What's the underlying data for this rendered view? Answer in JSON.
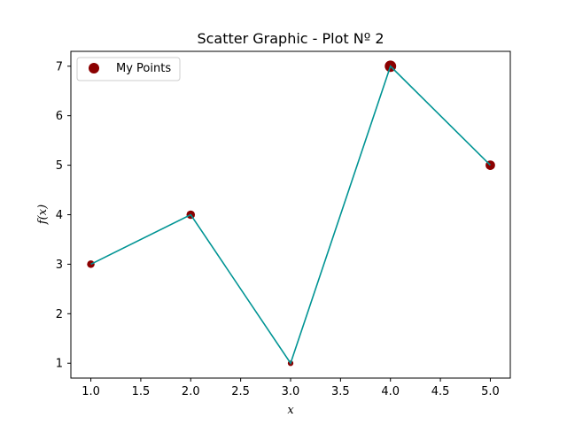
{
  "chart_data": {
    "type": "scatter",
    "title": "Scatter Graphic - Plot Nº 2",
    "xlabel": "x",
    "ylabel": "f(x)",
    "xlim": [
      0.8,
      5.2
    ],
    "ylim": [
      0.7,
      7.3
    ],
    "xticks": [
      1.0,
      1.5,
      2.0,
      2.5,
      3.0,
      3.5,
      4.0,
      4.5,
      5.0
    ],
    "xtick_labels": [
      "1.0",
      "1.5",
      "2.0",
      "2.5",
      "3.0",
      "3.5",
      "4.0",
      "4.5",
      "5.0"
    ],
    "yticks": [
      1,
      2,
      3,
      4,
      5,
      6,
      7
    ],
    "ytick_labels": [
      "1",
      "2",
      "3",
      "4",
      "5",
      "6",
      "7"
    ],
    "grid": false,
    "legend": {
      "placement": "top-left",
      "entries": [
        "My Points"
      ]
    },
    "line": {
      "color": "#009494",
      "x": [
        1,
        2,
        3,
        4,
        5
      ],
      "y": [
        3,
        4,
        1,
        7,
        5
      ]
    },
    "series": [
      {
        "name": "My Points",
        "color": "#8b0000",
        "x": [
          1,
          2,
          3,
          4,
          5
        ],
        "y": [
          3,
          4,
          1,
          7,
          5
        ],
        "sizes": [
          3,
          4,
          1,
          7,
          5
        ]
      }
    ]
  }
}
